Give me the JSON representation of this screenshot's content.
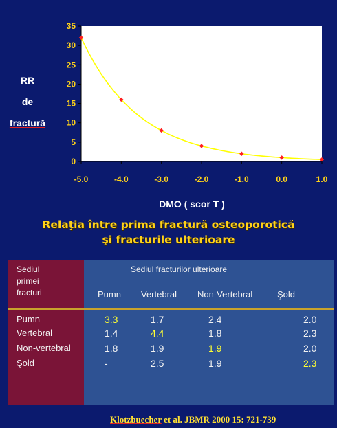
{
  "chart_data": {
    "type": "line",
    "x": [
      -5.0,
      -4.0,
      -3.0,
      -2.0,
      -1.0,
      0.0,
      1.0
    ],
    "y": [
      32,
      16,
      8,
      4,
      2,
      1,
      0.5
    ],
    "x_tick_labels": [
      "-5.0",
      "-4.0",
      "-3.0",
      "-2.0",
      "-1.0",
      "0.0",
      "1.0"
    ],
    "y_ticks": [
      0,
      5,
      10,
      15,
      20,
      25,
      30,
      35
    ],
    "xlim": [
      -5,
      1
    ],
    "ylim": [
      0,
      35
    ],
    "xlabel": "DMO ( scor T )",
    "ylabel": [
      "RR",
      "de",
      "fractură"
    ],
    "grid": false,
    "line_color": "#ffff00",
    "marker_color": "#ff2020",
    "plot_bg": "#ffffff"
  },
  "headline": {
    "line1": "Relaţia între prima fractură osteoporotică",
    "line2": "şi fracturile ulterioare"
  },
  "table": {
    "first_header": [
      "Sediul",
      "primei",
      "fracturi"
    ],
    "group_header": "Sediul fracturilor ulterioare",
    "columns": [
      "Pumn",
      "Vertebral",
      "Non-Vertebral",
      "Şold"
    ],
    "rows": [
      {
        "label": "Pumn",
        "values": [
          "3.3",
          "1.7",
          "2.4",
          "2.0"
        ]
      },
      {
        "label": "Vertebral",
        "values": [
          "1.4",
          "4.4",
          "1.8",
          "2.3"
        ]
      },
      {
        "label": "Non-vertebral",
        "values": [
          "1.8",
          "1.9",
          "1.9",
          "2.0"
        ]
      },
      {
        "label": "Şold",
        "values": [
          "-",
          "2.5",
          "1.9",
          "2.3"
        ]
      }
    ],
    "highlight_color": "#ffff33"
  },
  "citation": {
    "author": "Klotzbuecher",
    "rest": " et al.  JBMR 2000 15: 721-739"
  }
}
